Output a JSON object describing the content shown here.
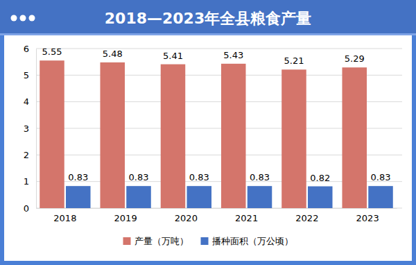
{
  "chart_data": {
    "type": "bar",
    "title": "2018—2023年全县粮食产量",
    "categories": [
      "2018",
      "2019",
      "2020",
      "2021",
      "2022",
      "2023"
    ],
    "series": [
      {
        "name": "产量（万吨）",
        "color": "#d4756b",
        "values": [
          5.55,
          5.48,
          5.41,
          5.43,
          5.21,
          5.29
        ]
      },
      {
        "name": "播种面积（万公顷）",
        "color": "#4472c4",
        "values": [
          0.83,
          0.83,
          0.83,
          0.83,
          0.82,
          0.83
        ]
      }
    ],
    "ylim": [
      0,
      6
    ],
    "yticks": [
      0,
      1,
      2,
      3,
      4,
      5,
      6
    ],
    "grid": true,
    "data_labels": true,
    "legend": "bottom"
  }
}
